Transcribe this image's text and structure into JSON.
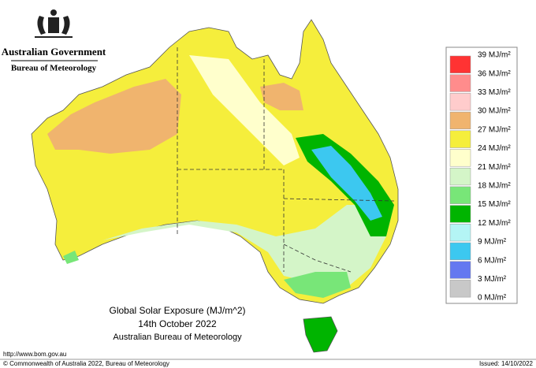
{
  "header": {
    "government": "Australian Government",
    "agency": "Bureau of Meteorology"
  },
  "map": {
    "title": "Global Solar Exposure (MJ/m^2)",
    "date": "14th October 2022",
    "credit": "Australian Bureau of Meteorology"
  },
  "legend": {
    "labels": [
      "39 MJ/m²",
      "36 MJ/m²",
      "33 MJ/m²",
      "30 MJ/m²",
      "27 MJ/m²",
      "24 MJ/m²",
      "21 MJ/m²",
      "18 MJ/m²",
      "15 MJ/m²",
      "12 MJ/m²",
      "9 MJ/m²",
      "6 MJ/m²",
      "3 MJ/m²",
      "0 MJ/m²"
    ],
    "colors": [
      "#ff3333",
      "#ff8c8c",
      "#ffcccc",
      "#f0b46e",
      "#f5ee3c",
      "#ffffcc",
      "#d4f5c8",
      "#78e678",
      "#00b400",
      "#b4f5f5",
      "#3cc8f0",
      "#6478f0",
      "#c8c8c8"
    ]
  },
  "footer": {
    "url": "http://www.bom.gov.au",
    "copyright": "© Commonwealth of Australia 2022, Bureau of Meteorology",
    "issued": "Issued: 14/10/2022"
  }
}
